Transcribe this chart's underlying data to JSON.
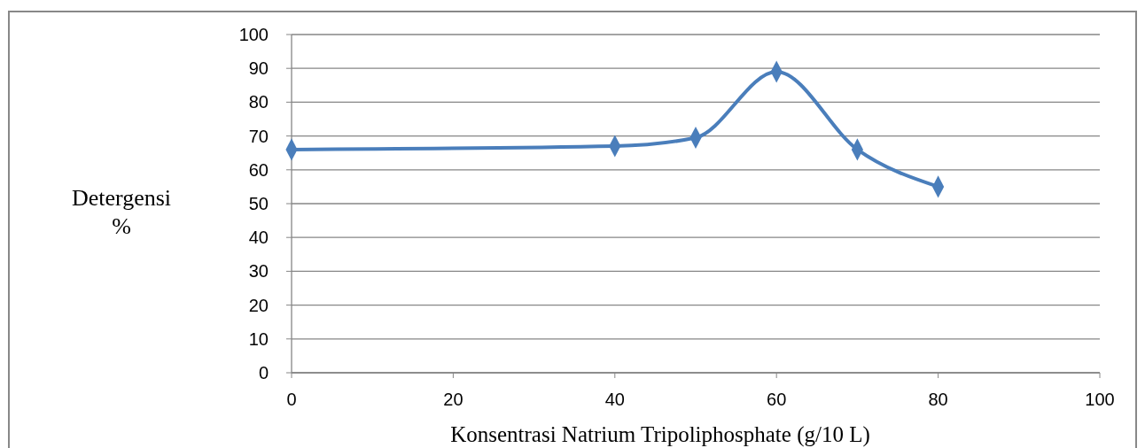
{
  "chart_data": {
    "type": "line",
    "xlabel": "Konsentrasi Natrium Tripoliphosphate  (g/10 L)",
    "ylabel": "Detergensi %",
    "x": [
      0,
      40,
      50,
      60,
      70,
      80
    ],
    "series": [
      {
        "color": "#4a7ebb",
        "values": [
          66,
          67,
          69.5,
          89,
          66,
          55
        ]
      }
    ],
    "xlim": [
      0,
      100
    ],
    "xticks": [
      0,
      20,
      40,
      60,
      80,
      100
    ],
    "ylim": [
      0,
      100
    ],
    "yticks": [
      0,
      10,
      20,
      30,
      40,
      50,
      60,
      70,
      80,
      90,
      100
    ],
    "grid": "y",
    "marker": "diamond",
    "line_style": "solid"
  }
}
